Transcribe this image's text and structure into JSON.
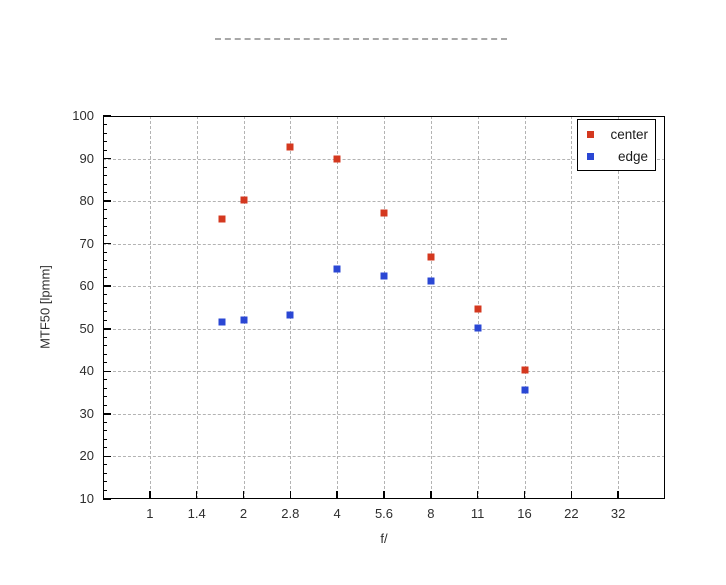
{
  "page": {
    "background_color": "#ffffff",
    "masked_title": {
      "present": true,
      "style": "dashed-line",
      "color": "#a8a8a8"
    }
  },
  "chart_data": {
    "type": "scatter",
    "xlabel": "f/",
    "ylabel": "MTF50 [lpmm]",
    "x_scale": "log-fstops",
    "x_tick_values": [
      1,
      1.4,
      2,
      2.8,
      4,
      5.6,
      8,
      11,
      16,
      22,
      32
    ],
    "x_tick_labels": [
      "1",
      "1.4",
      "2",
      "2.8",
      "4",
      "5.6",
      "8",
      "11",
      "16",
      "22",
      "32"
    ],
    "y_ticks": [
      10,
      20,
      30,
      40,
      50,
      60,
      70,
      80,
      90,
      100
    ],
    "y_minor_step": 2,
    "ylim": [
      10,
      100
    ],
    "grid": true,
    "grid_color": "#b3b3b3",
    "legend_position": "top-right",
    "series": [
      {
        "name": "center",
        "color": "#d4381f",
        "marker": "square",
        "x": [
          1.7,
          2,
          2.8,
          4,
          5.6,
          8,
          11,
          16
        ],
        "y": [
          75.9,
          80.2,
          92.7,
          89.8,
          77.1,
          66.9,
          54.6,
          40.4
        ]
      },
      {
        "name": "edge",
        "color": "#2a47d4",
        "marker": "square",
        "x": [
          1.7,
          2,
          2.8,
          4,
          5.6,
          8,
          11,
          16
        ],
        "y": [
          51.6,
          52.0,
          53.2,
          64.1,
          62.4,
          61.3,
          50.1,
          35.7
        ]
      }
    ]
  }
}
